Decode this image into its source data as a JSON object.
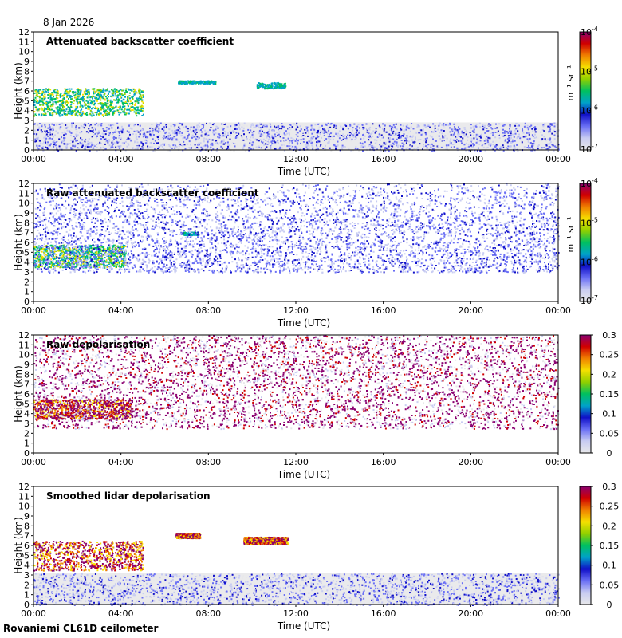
{
  "header": {
    "date": "8 Jan 2026"
  },
  "footer": {
    "site": "Rovaniemi CL61D ceilometer"
  },
  "colors": {
    "colormap": [
      "#e8e8ea",
      "#c8ccf2",
      "#6a6ff5",
      "#1010c8",
      "#00a2c8",
      "#00c060",
      "#90d000",
      "#f5e000",
      "#f08000",
      "#d00000",
      "#8a0070"
    ],
    "background": "#ffffff"
  },
  "chart_data": [
    {
      "type": "heatmap",
      "title": "Attenuated backscatter coefficient",
      "xlabel": "Time (UTC)",
      "ylabel": "Height (km)",
      "x_ticks": [
        "00:00",
        "04:00",
        "08:00",
        "12:00",
        "16:00",
        "20:00",
        "00:00"
      ],
      "y_ticks": [
        "0",
        "1",
        "2",
        "3",
        "4",
        "5",
        "6",
        "7",
        "8",
        "9",
        "10",
        "11",
        "12"
      ],
      "ylim": [
        0,
        12
      ],
      "colorbar": {
        "scale": "log",
        "range": [
          1e-07,
          0.0001
        ],
        "unit_label": "m⁻¹ sr⁻¹",
        "ticks": [
          {
            "base": "10",
            "exp": "-4"
          },
          {
            "base": "10",
            "exp": "-5"
          },
          {
            "base": "10",
            "exp": "-6"
          },
          {
            "base": "10",
            "exp": "-7"
          }
        ]
      },
      "features": [
        {
          "kind": "cloud",
          "t_start": 0,
          "t_end": 5,
          "h_bottom": 3.5,
          "h_top": 6.3,
          "level": "high"
        },
        {
          "kind": "cloud_layer",
          "t_start": 6.6,
          "t_end": 8.3,
          "h_bottom": 6.8,
          "h_top": 7.1,
          "level": "mid"
        },
        {
          "kind": "cloud_layer",
          "t_start": 10.2,
          "t_end": 11.5,
          "h_bottom": 6.3,
          "h_top": 6.9,
          "level": "mid"
        },
        {
          "kind": "boundary_layer",
          "t_start": 0,
          "t_end": 24,
          "h_bottom": 0,
          "h_top": 2.8,
          "level": "low"
        }
      ]
    },
    {
      "type": "heatmap",
      "title": "Raw attenuated backscatter coefficient",
      "xlabel": "Time (UTC)",
      "ylabel": "Height (km)",
      "x_ticks": [
        "00:00",
        "04:00",
        "08:00",
        "12:00",
        "16:00",
        "20:00",
        "00:00"
      ],
      "y_ticks": [
        "0",
        "1",
        "2",
        "3",
        "4",
        "5",
        "6",
        "7",
        "8",
        "9",
        "10",
        "11",
        "12"
      ],
      "ylim": [
        0,
        12
      ],
      "colorbar": {
        "scale": "log",
        "range": [
          1e-07,
          0.0001
        ],
        "unit_label": "m⁻¹ sr⁻¹",
        "ticks": [
          {
            "base": "10",
            "exp": "-4"
          },
          {
            "base": "10",
            "exp": "-5"
          },
          {
            "base": "10",
            "exp": "-6"
          },
          {
            "base": "10",
            "exp": "-7"
          }
        ]
      },
      "features": [
        {
          "kind": "cloud",
          "t_start": 0,
          "t_end": 4.2,
          "h_bottom": 3.5,
          "h_top": 5.8,
          "level": "high"
        },
        {
          "kind": "cloud_layer",
          "t_start": 6.8,
          "t_end": 7.5,
          "h_bottom": 6.8,
          "h_top": 7.1,
          "level": "mid"
        },
        {
          "kind": "noise",
          "t_start": 0,
          "t_end": 24,
          "h_bottom": 3,
          "h_top": 12,
          "level": "noise"
        }
      ]
    },
    {
      "type": "heatmap",
      "title": "Raw depolarisation",
      "xlabel": "Time (UTC)",
      "ylabel": "Height (km)",
      "x_ticks": [
        "00:00",
        "04:00",
        "08:00",
        "12:00",
        "16:00",
        "20:00",
        "00:00"
      ],
      "y_ticks": [
        "0",
        "1",
        "2",
        "3",
        "4",
        "5",
        "6",
        "7",
        "8",
        "9",
        "10",
        "11",
        "12"
      ],
      "ylim": [
        0,
        12
      ],
      "colorbar": {
        "scale": "linear",
        "range": [
          0,
          0.3
        ],
        "ticks": [
          "0",
          "0.05",
          "0.1",
          "0.15",
          "0.2",
          "0.25",
          "0.3"
        ]
      },
      "features": [
        {
          "kind": "cloud",
          "t_start": 0,
          "t_end": 4.5,
          "h_bottom": 3.5,
          "h_top": 5.5,
          "level": "high"
        },
        {
          "kind": "noise",
          "t_start": 0,
          "t_end": 24,
          "h_bottom": 2.5,
          "h_top": 12,
          "level": "noise"
        }
      ]
    },
    {
      "type": "heatmap",
      "title": "Smoothed lidar depolarisation",
      "xlabel": "Time (UTC)",
      "ylabel": "Height (km)",
      "x_ticks": [
        "00:00",
        "04:00",
        "08:00",
        "12:00",
        "16:00",
        "20:00",
        "00:00"
      ],
      "y_ticks": [
        "0",
        "1",
        "2",
        "3",
        "4",
        "5",
        "6",
        "7",
        "8",
        "9",
        "10",
        "11",
        "12"
      ],
      "ylim": [
        0,
        12
      ],
      "colorbar": {
        "scale": "linear",
        "range": [
          0,
          0.3
        ],
        "ticks": [
          "0",
          "0.05",
          "0.1",
          "0.15",
          "0.2",
          "0.25",
          "0.3"
        ]
      },
      "features": [
        {
          "kind": "cloud",
          "t_start": 0,
          "t_end": 5,
          "h_bottom": 3.5,
          "h_top": 6.5,
          "level": "high"
        },
        {
          "kind": "cloud_layer",
          "t_start": 6.5,
          "t_end": 7.6,
          "h_bottom": 6.8,
          "h_top": 7.3,
          "level": "high"
        },
        {
          "kind": "cloud_layer",
          "t_start": 9.6,
          "t_end": 11.6,
          "h_bottom": 6.2,
          "h_top": 6.9,
          "level": "high"
        },
        {
          "kind": "boundary_layer",
          "t_start": 0,
          "t_end": 24,
          "h_bottom": 0,
          "h_top": 3.2,
          "level": "low"
        }
      ]
    }
  ]
}
